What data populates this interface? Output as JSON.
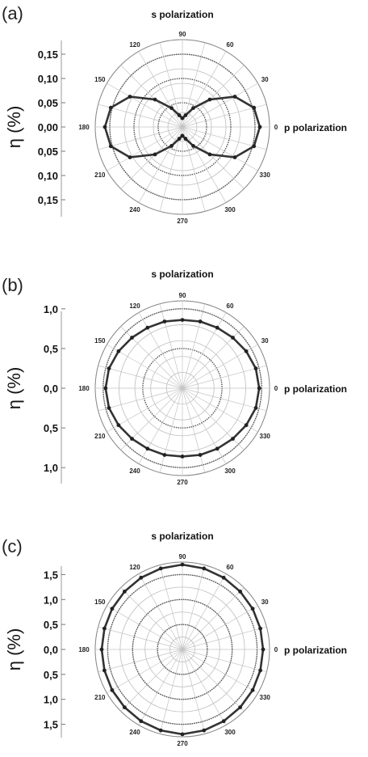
{
  "chart_data": [
    {
      "type": "polar",
      "panel_label": "(a)",
      "top_label": "s polarization",
      "right_label": "p polarization",
      "ylabel": "η (%)",
      "angle_labels": [
        "0",
        "30",
        "60",
        "90",
        "120",
        "150",
        "180",
        "210",
        "240",
        "270",
        "300",
        "330"
      ],
      "rmax": 0.18,
      "ring_radii": [
        0.03,
        0.06,
        0.09,
        0.12,
        0.15,
        0.18
      ],
      "bold_ring_radii": [
        0.05,
        0.1,
        0.15
      ],
      "y_ticks": [
        "0,15",
        "0,10",
        "0,05",
        "0,00",
        "0,05",
        "0,10",
        "0,15"
      ],
      "y_tick_values": [
        0.15,
        0.1,
        0.05,
        0.0,
        -0.05,
        -0.1,
        -0.15
      ],
      "series": [
        {
          "angles": [
            0,
            15,
            30,
            45,
            60,
            75,
            90,
            105,
            120,
            135,
            150,
            165,
            180,
            195,
            210,
            225,
            240,
            255,
            270,
            285,
            300,
            315,
            330,
            345
          ],
          "values": [
            0.16,
            0.153,
            0.125,
            0.08,
            0.045,
            0.025,
            0.018,
            0.025,
            0.045,
            0.08,
            0.125,
            0.153,
            0.16,
            0.153,
            0.125,
            0.08,
            0.045,
            0.025,
            0.018,
            0.025,
            0.045,
            0.08,
            0.125,
            0.153
          ]
        }
      ]
    },
    {
      "type": "polar",
      "panel_label": "(b)",
      "top_label": "s polarization",
      "right_label": "p polarization",
      "ylabel": "η (%)",
      "angle_labels": [
        "0",
        "30",
        "60",
        "90",
        "120",
        "150",
        "180",
        "210",
        "240",
        "270",
        "300",
        "330"
      ],
      "rmax": 1.1,
      "ring_radii": [
        0.2,
        0.4,
        0.6,
        0.8,
        1.0,
        1.1
      ],
      "bold_ring_radii": [
        0.5,
        1.0
      ],
      "y_ticks": [
        "1,0",
        "0,5",
        "0,0",
        "0,5",
        "1,0"
      ],
      "y_tick_values": [
        1.0,
        0.5,
        0.0,
        -0.5,
        -1.0
      ],
      "series": [
        {
          "angles": [
            0,
            15,
            30,
            45,
            60,
            75,
            90,
            105,
            120,
            135,
            150,
            165,
            180,
            195,
            210,
            225,
            240,
            255,
            270,
            285,
            300,
            315,
            330,
            345
          ],
          "values": [
            0.97,
            0.96,
            0.93,
            0.9,
            0.88,
            0.87,
            0.86,
            0.87,
            0.88,
            0.9,
            0.93,
            0.96,
            0.97,
            0.96,
            0.93,
            0.9,
            0.88,
            0.87,
            0.86,
            0.87,
            0.88,
            0.9,
            0.93,
            0.96
          ]
        }
      ]
    },
    {
      "type": "polar",
      "panel_label": "(c)",
      "top_label": "s polarization",
      "right_label": "p polarization",
      "ylabel": "η (%)",
      "angle_labels": [
        "0",
        "30",
        "60",
        "90",
        "120",
        "150",
        "180",
        "210",
        "240",
        "270",
        "300",
        "330"
      ],
      "rmax": 1.75,
      "ring_radii": [
        0.25,
        0.5,
        0.75,
        1.0,
        1.25,
        1.5,
        1.75
      ],
      "bold_ring_radii": [
        0.5,
        1.0,
        1.5
      ],
      "y_ticks": [
        "1,5",
        "1,0",
        "0,5",
        "0,0",
        "0,5",
        "1,0",
        "1,5"
      ],
      "y_tick_values": [
        1.5,
        1.0,
        0.5,
        0.0,
        -0.5,
        -1.0,
        -1.5
      ],
      "series": [
        {
          "angles": [
            0,
            15,
            30,
            45,
            60,
            75,
            90,
            105,
            120,
            135,
            150,
            165,
            180,
            195,
            210,
            225,
            240,
            255,
            270,
            285,
            300,
            315,
            330,
            345
          ],
          "values": [
            1.62,
            1.62,
            1.63,
            1.64,
            1.66,
            1.68,
            1.7,
            1.68,
            1.66,
            1.64,
            1.63,
            1.62,
            1.62,
            1.62,
            1.63,
            1.64,
            1.66,
            1.68,
            1.7,
            1.68,
            1.66,
            1.64,
            1.63,
            1.62
          ]
        }
      ]
    }
  ]
}
